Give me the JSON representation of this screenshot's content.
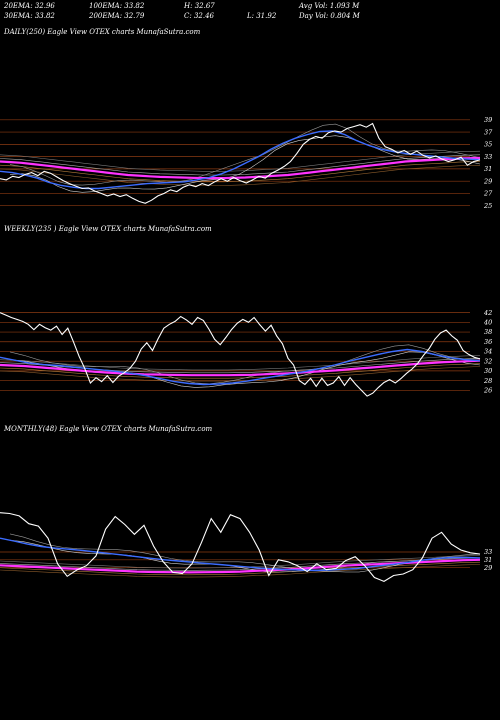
{
  "stats": {
    "ema20": "20EMA: 32.96",
    "ema100": "100EMA: 33.82",
    "high": "H: 32.67",
    "avg_vol": "Avg Vol: 1.093 M",
    "ema30": "30EMA: 33.82",
    "ema200": "200EMA: 32.79",
    "close": "C: 32.46",
    "low": "L: 31.92",
    "day_vol": "Day Vol: 0.804 M"
  },
  "panels": [
    {
      "title": "DAILY(250) Eagle  View  OTEX  charts MunafaSutra.com",
      "levels": [
        39,
        37,
        35,
        33,
        31,
        29,
        27,
        25
      ]
    },
    {
      "title": "WEEKLY(235                 ) Eagle  View  OTEX  charts MunafaSutra.com",
      "levels": [
        42,
        40,
        38,
        36,
        34,
        32,
        30,
        28,
        26
      ]
    },
    {
      "title": "MONTHLY(48) Eagle  View  OTEX  charts MunafaSutra.com",
      "levels": [
        33,
        31,
        29
      ]
    }
  ],
  "chart_data": [
    {
      "type": "line",
      "ylim": [
        24.3,
        40.6
      ],
      "price": [
        29.4,
        29.2,
        29.8,
        29.6,
        30.1,
        30.4,
        29.9,
        30.6,
        30.3,
        29.7,
        29.1,
        28.6,
        28.2,
        27.8,
        27.9,
        27.4,
        27.0,
        26.6,
        26.9,
        26.5,
        26.8,
        26.2,
        25.7,
        25.4,
        25.9,
        26.6,
        27.0,
        27.6,
        27.3,
        28.0,
        28.4,
        28.1,
        28.6,
        28.3,
        28.9,
        29.4,
        29.0,
        29.6,
        29.1,
        28.7,
        29.2,
        29.8,
        29.5,
        30.3,
        30.8,
        31.4,
        32.2,
        33.5,
        35.0,
        35.8,
        36.3,
        36.0,
        36.9,
        37.2,
        37.0,
        37.6,
        37.9,
        38.2,
        37.8,
        38.4,
        36.0,
        34.6,
        34.2,
        33.6,
        34.0,
        33.4,
        33.9,
        33.2,
        32.8,
        33.1,
        32.6,
        32.2,
        32.5,
        32.9,
        31.6,
        32.2,
        32.46
      ],
      "ema_slow": [
        32.2,
        32.1,
        32.0,
        31.8,
        31.6,
        31.4,
        31.2,
        31.0,
        30.8,
        30.6,
        30.4,
        30.2,
        30.0,
        29.9,
        29.8,
        29.7,
        29.65,
        29.6,
        29.55,
        29.5,
        29.5,
        29.5,
        29.55,
        29.6,
        29.7,
        29.8,
        29.9,
        30.0,
        30.2,
        30.4,
        30.6,
        30.8,
        31.0,
        31.2,
        31.4,
        31.6,
        31.8,
        32.0,
        32.2,
        32.3,
        32.4,
        32.5,
        32.6,
        32.7,
        32.75,
        32.79
      ],
      "ema_fast": [
        30.6,
        30.4,
        30.0,
        29.5,
        28.8,
        28.3,
        28.0,
        27.8,
        27.8,
        28.0,
        28.2,
        28.4,
        28.6,
        28.7,
        28.8,
        28.9,
        29.2,
        29.6,
        30.2,
        31.0,
        32.0,
        33.0,
        34.2,
        35.2,
        36.0,
        36.6,
        37.1,
        37.2,
        36.6,
        35.6,
        34.8,
        34.2,
        33.8,
        33.5,
        33.3,
        33.1,
        32.9,
        32.7,
        32.6,
        32.5
      ]
    },
    {
      "type": "line",
      "ylim": [
        24.0,
        44.6
      ],
      "price": [
        42,
        41.5,
        41,
        40.6,
        40.2,
        39.6,
        38.5,
        39.6,
        38.9,
        38.4,
        39.2,
        37.5,
        38.8,
        36.0,
        33.0,
        30.5,
        27.5,
        28.6,
        27.8,
        29.0,
        27.6,
        28.9,
        29.6,
        30.5,
        32.0,
        34.5,
        35.8,
        34.2,
        36.6,
        38.8,
        39.6,
        40.2,
        41.2,
        40.5,
        39.6,
        41.0,
        40.4,
        38.6,
        36.5,
        35.4,
        36.9,
        38.5,
        39.8,
        40.6,
        40.0,
        41.0,
        39.5,
        38.2,
        39.4,
        37.2,
        35.6,
        32.6,
        31.2,
        28.0,
        27.2,
        28.5,
        26.8,
        28.5,
        27.0,
        27.5,
        28.8,
        27.0,
        28.6,
        27.2,
        26.0,
        24.8,
        25.4,
        26.6,
        27.6,
        28.2,
        27.5,
        28.4,
        29.5,
        30.4,
        31.6,
        33.2,
        34.6,
        36.5,
        37.8,
        38.4,
        37.2,
        36.3,
        34.2,
        33.4,
        32.8,
        32.46
      ],
      "ema_slow": [
        31.2,
        31.1,
        31.0,
        30.8,
        30.6,
        30.4,
        30.2,
        30.0,
        29.8,
        29.65,
        29.5,
        29.4,
        29.3,
        29.25,
        29.2,
        29.15,
        29.1,
        29.1,
        29.1,
        29.1,
        29.15,
        29.2,
        29.3,
        29.4,
        29.5,
        29.65,
        29.8,
        29.95,
        30.1,
        30.3,
        30.5,
        30.7,
        30.9,
        31.1,
        31.3,
        31.5,
        31.65,
        31.8,
        31.9,
        32.0,
        32.1
      ],
      "ema_fast": [
        32.8,
        32.2,
        31.6,
        31.3,
        31.1,
        30.8,
        30.5,
        30.2,
        29.9,
        29.5,
        29.0,
        28.4,
        27.8,
        27.4,
        27.2,
        27.3,
        27.5,
        27.9,
        28.4,
        28.9,
        29.4,
        29.9,
        30.5,
        31.2,
        32.0,
        32.7,
        33.4,
        34.0,
        34.4,
        34.0,
        33.3,
        32.7,
        32.3,
        32.1
      ]
    },
    {
      "type": "line",
      "ylim": [
        19.5,
        47.0
      ],
      "price": [
        43.0,
        42.8,
        42.2,
        40.2,
        39.6,
        36.5,
        30.0,
        26.8,
        28.4,
        29.5,
        32.0,
        38.8,
        42.0,
        40.0,
        37.5,
        39.8,
        34.5,
        30.5,
        27.8,
        27.5,
        30.0,
        35.5,
        41.5,
        38.0,
        42.5,
        41.5,
        38.0,
        33.5,
        27.0,
        31.0,
        30.5,
        29.5,
        28.0,
        30.0,
        28.5,
        28.8,
        30.8,
        31.8,
        29.5,
        26.5,
        25.5,
        27.0,
        27.4,
        28.5,
        31.5,
        36.5,
        38.0,
        35.0,
        33.5,
        32.8,
        32.46
      ],
      "ema_slow": [
        29.6,
        29.4,
        29.2,
        29.0,
        28.8,
        28.6,
        28.4,
        28.2,
        28.0,
        27.9,
        27.85,
        27.8,
        27.85,
        27.9,
        28.0,
        28.2,
        28.4,
        28.6,
        28.9,
        29.2,
        29.5,
        29.7,
        29.9,
        30.1,
        30.3,
        30.5,
        30.7,
        30.9,
        31.0
      ],
      "ema_fast": [
        36.5,
        35.8,
        35.0,
        34.4,
        34.0,
        33.7,
        33.4,
        33.0,
        32.6,
        32.2,
        31.8,
        31.4,
        31.0,
        30.7,
        30.4,
        30.1,
        29.8,
        29.5,
        29.2,
        28.9,
        28.7,
        28.5,
        28.4,
        28.3,
        28.4,
        28.6,
        28.8,
        29.2,
        29.6,
        30.0,
        30.5,
        31.0,
        31.4,
        31.6,
        31.6,
        31.5
      ]
    }
  ]
}
